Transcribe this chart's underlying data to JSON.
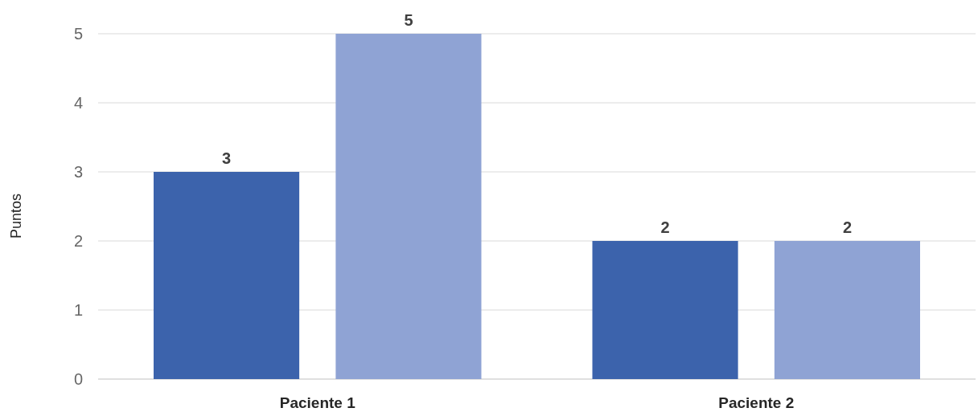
{
  "chart_data": {
    "type": "bar",
    "ylabel": "Puntos",
    "categories": [
      "Paciente 1",
      "Paciente 2"
    ],
    "series": [
      {
        "color": "#3c63ac",
        "values": [
          3,
          2
        ]
      },
      {
        "color": "#8fa3d4",
        "values": [
          5,
          2
        ]
      }
    ],
    "ylim": [
      0,
      5
    ],
    "yticks": [
      0,
      1,
      2,
      3,
      4,
      5
    ],
    "grid": "y",
    "data_labels": true
  }
}
